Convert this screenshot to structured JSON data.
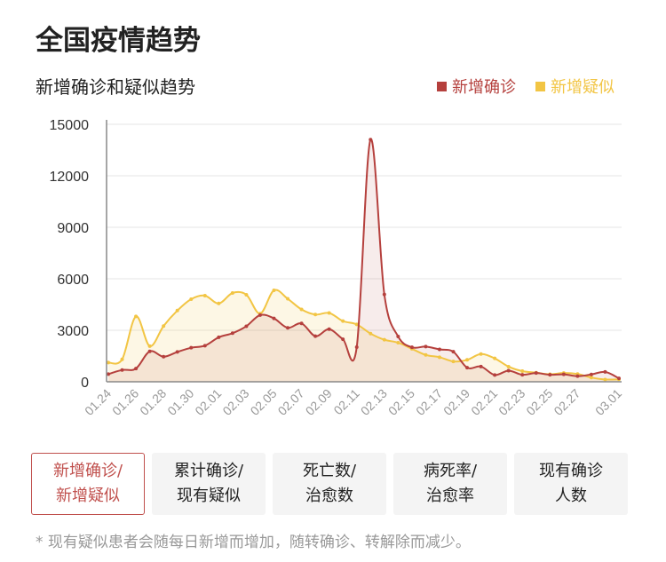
{
  "header": {
    "title": "全国疫情趋势"
  },
  "chart_data": {
    "type": "area",
    "title": "新增确诊和疑似趋势",
    "xlabel": "",
    "ylabel": "",
    "ylim": [
      0,
      15000
    ],
    "yticks": [
      "0",
      "3000",
      "6000",
      "9000",
      "12000",
      "15000"
    ],
    "ytick_values": [
      0,
      3000,
      6000,
      9000,
      12000,
      15000
    ],
    "grid": true,
    "legend_position": "top-right",
    "x": [
      "01.24",
      "01.25",
      "01.26",
      "01.27",
      "01.28",
      "01.29",
      "01.30",
      "01.31",
      "02.01",
      "02.02",
      "02.03",
      "02.04",
      "02.05",
      "02.06",
      "02.07",
      "02.08",
      "02.09",
      "02.10",
      "02.11",
      "02.12",
      "02.13",
      "02.14",
      "02.15",
      "02.16",
      "02.17",
      "02.18",
      "02.19",
      "02.20",
      "02.21",
      "02.22",
      "02.23",
      "02.24",
      "02.25",
      "02.26",
      "02.27",
      "02.28",
      "02.29",
      "03.01"
    ],
    "xtick_labels": [
      "01.24",
      "01.26",
      "01.28",
      "01.30",
      "02.01",
      "02.03",
      "02.05",
      "02.07",
      "02.09",
      "02.11",
      "02.13",
      "02.15",
      "02.17",
      "02.19",
      "02.21",
      "02.23",
      "02.25",
      "02.27",
      "03.01"
    ],
    "xtick_index": [
      0,
      2,
      4,
      6,
      8,
      10,
      12,
      14,
      16,
      18,
      20,
      22,
      24,
      26,
      28,
      30,
      32,
      34,
      37
    ],
    "series": [
      {
        "name": "新增确诊",
        "color": "#b5403d",
        "values": [
          444,
          688,
          769,
          1771,
          1459,
          1737,
          1982,
          2102,
          2590,
          2829,
          3235,
          3887,
          3694,
          3143,
          3399,
          2656,
          3062,
          2478,
          2015,
          14108,
          5090,
          2641,
          2009,
          2048,
          1886,
          1749,
          820,
          889,
          397,
          648,
          409,
          508,
          406,
          433,
          327,
          427,
          573,
          202
        ]
      },
      {
        "name": "新增疑似",
        "color": "#f2c544",
        "values": [
          1118,
          1309,
          3806,
          2077,
          3248,
          4148,
          4812,
          5019,
          4562,
          5173,
          5072,
          3971,
          5328,
          4833,
          4214,
          3916,
          4008,
          3536,
          3342,
          2807,
          2450,
          2277,
          1918,
          1563,
          1432,
          1185,
          1277,
          1614,
          1361,
          882,
          620,
          530,
          439,
          508,
          452,
          248,
          132,
          141
        ]
      }
    ]
  },
  "tabs": [
    {
      "line1": "新增确诊/",
      "line2": "新增疑似"
    },
    {
      "line1": "累计确诊/",
      "line2": "现有疑似"
    },
    {
      "line1": "死亡数/",
      "line2": "治愈数"
    },
    {
      "line1": "病死率/",
      "line2": "治愈率"
    },
    {
      "line1": "现有确诊",
      "line2": "人数"
    }
  ],
  "footnote": "* 现有疑似患者会随每日新增而增加，随转确诊、转解除而减少。"
}
